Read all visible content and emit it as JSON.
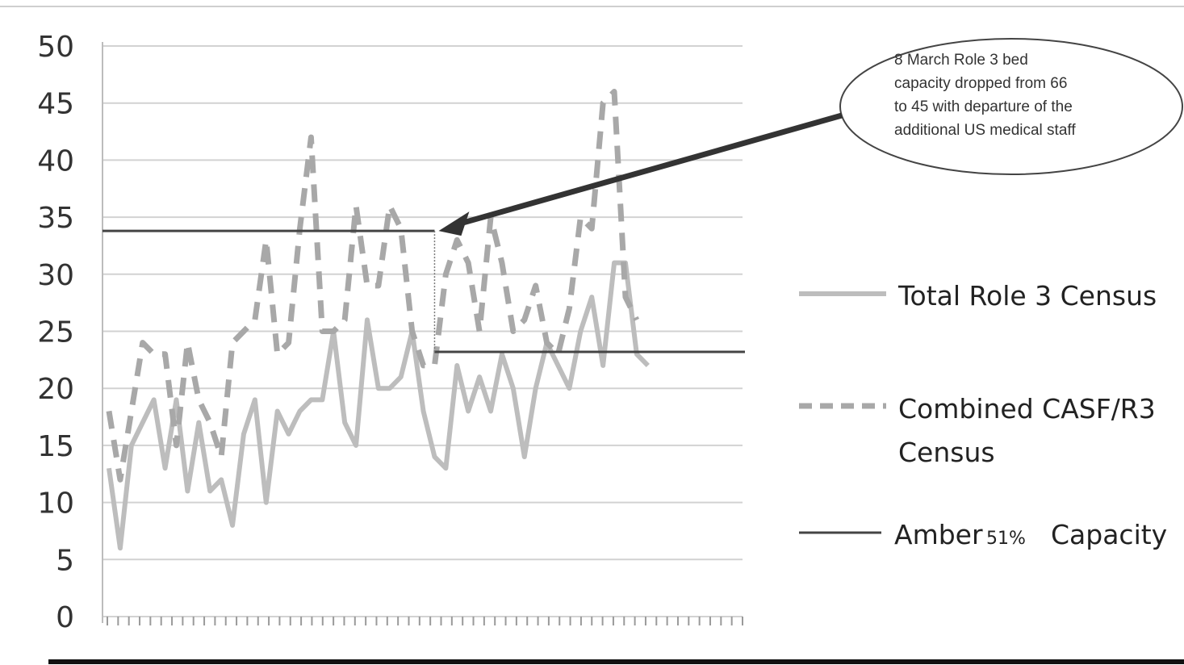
{
  "chart_data": {
    "type": "line",
    "ylim": [
      0,
      50
    ],
    "y_ticks": [
      "0",
      "5",
      "10",
      "15",
      "20",
      "25",
      "30",
      "35",
      "40",
      "45",
      "50"
    ],
    "grid": true,
    "legend_position": "right",
    "x_points": 60,
    "series": [
      {
        "name": "Total Role 3 Census",
        "style": "solid-light",
        "color": "#bdbdbd",
        "values": [
          13,
          6,
          15,
          17,
          19,
          13,
          19,
          11,
          17,
          11,
          12,
          8,
          16,
          19,
          10,
          18,
          16,
          18,
          19,
          19,
          25,
          17,
          15,
          26,
          20,
          20,
          21,
          25,
          18,
          14,
          13,
          22,
          18,
          21,
          18,
          23,
          20,
          14,
          20,
          24,
          22,
          20,
          25,
          28,
          22,
          31,
          31,
          23,
          22
        ]
      },
      {
        "name": "Combined CASF/R3 Census",
        "name_lines": [
          "Combined CASF/R3",
          "Census"
        ],
        "style": "dashed",
        "color": "#a8a8a8",
        "values": [
          18,
          12,
          18,
          24,
          23,
          23,
          15,
          24,
          19,
          17,
          14,
          24,
          25,
          26,
          33,
          23,
          24,
          34,
          42,
          25,
          25,
          26,
          36,
          29,
          29,
          36,
          34,
          25,
          22,
          22,
          30,
          33,
          31,
          25,
          35,
          31,
          25,
          26,
          29,
          24,
          23,
          27,
          35,
          34,
          45,
          46,
          28,
          26
        ]
      },
      {
        "name": "Amber",
        "name_suffix_small": "51%",
        "name_suffix": "Capacity",
        "style": "solid-dark",
        "color": "#444444",
        "segments": [
          {
            "x_start": 0,
            "x_end": 29,
            "value": 33.8
          },
          {
            "x_start": 29,
            "x_end": 49,
            "value": 23.2
          }
        ]
      }
    ],
    "annotations": [
      {
        "text_lines": [
          "8 March Role 3 bed",
          "capacity dropped from 66",
          "to 45 with departure of the",
          "additional US medical staff"
        ],
        "points_to": {
          "x": 29,
          "y": 33.8
        }
      }
    ]
  }
}
